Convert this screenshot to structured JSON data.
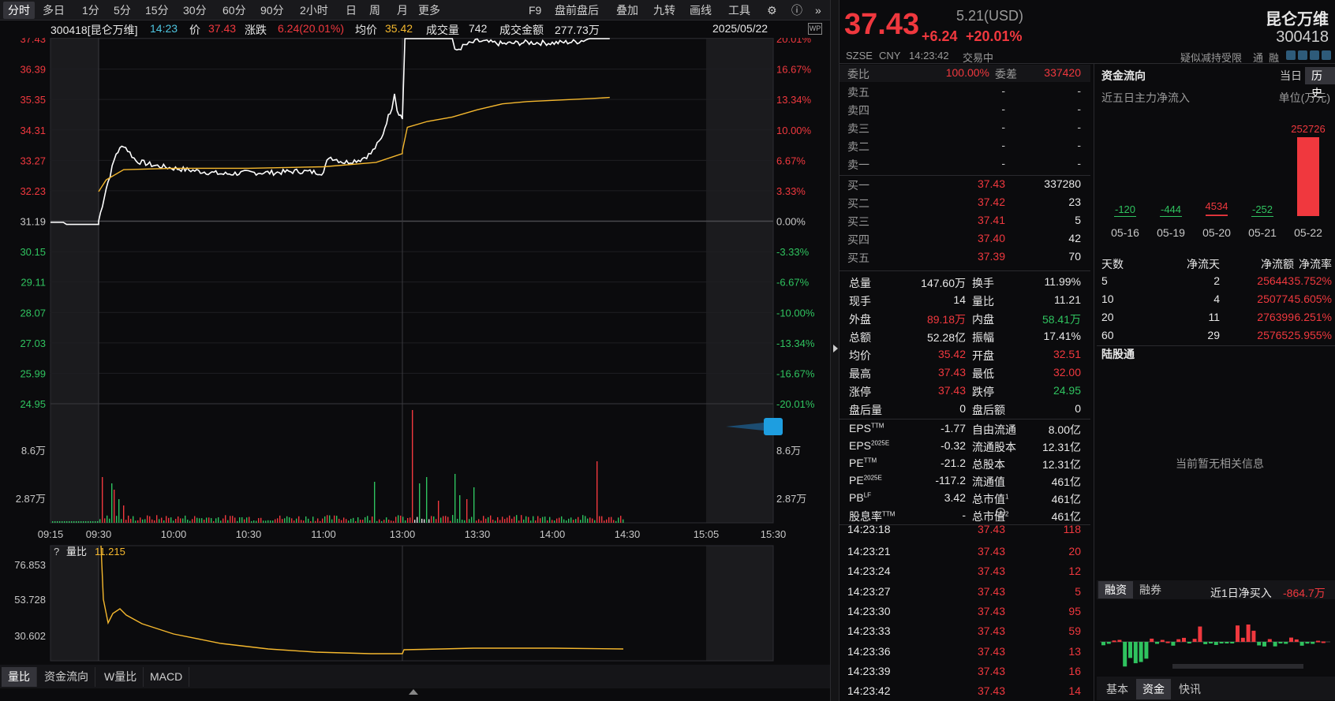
{
  "periods": [
    "分时",
    "多日",
    "1分",
    "5分",
    "15分",
    "30分",
    "60分",
    "90分",
    "2小时",
    "日",
    "周",
    "月",
    "更多"
  ],
  "right_tools": [
    "F9",
    "盘前盘后",
    "叠加",
    "九转",
    "画线",
    "工具"
  ],
  "info": {
    "code_name": "300418[昆仑万维]",
    "time": "14:23",
    "price_label": "价",
    "price": "37.43",
    "change_label": "涨跌",
    "change": "6.24(20.01%)",
    "avg_label": "均价",
    "avg": "35.42",
    "vol_label": "成交量",
    "vol": "742",
    "amount_label": "成交金额",
    "amount": "277.73万",
    "date": "2025/05/22"
  },
  "y_left": [
    "37.43",
    "36.39",
    "35.35",
    "34.31",
    "33.27",
    "32.23",
    "31.19",
    "30.15",
    "29.11",
    "28.07",
    "27.03",
    "25.99",
    "24.95"
  ],
  "y_right": [
    "20.01%",
    "16.67%",
    "13.34%",
    "10.00%",
    "6.67%",
    "3.33%",
    "0.00%",
    "-3.33%",
    "-6.67%",
    "-10.00%",
    "-13.34%",
    "-16.67%",
    "-20.01%"
  ],
  "vol_ticks": [
    "8.6万",
    "2.87万"
  ],
  "x_ticks": [
    "09:15",
    "09:30",
    "10:00",
    "10:30",
    "11:00",
    "13:00",
    "13:30",
    "14:00",
    "14:30",
    "15:05",
    "15:30"
  ],
  "indicator": {
    "q": "?",
    "name": "量比",
    "value": "11.215",
    "ticks": [
      "76.853",
      "53.728",
      "30.602"
    ]
  },
  "bottom_tabs": [
    "量比",
    "资金流向",
    "W量比",
    "MACD"
  ],
  "header": {
    "price": "37.43",
    "usd": "5.21(USD)",
    "chg": "+6.24",
    "pct": "+20.01%",
    "name": "昆仑万维",
    "code": "300418",
    "exch": "SZSE",
    "cur": "CNY",
    "time": "14:23:42",
    "status": "交易中",
    "tags": [
      "疑似减持受限",
      "通",
      "融"
    ]
  },
  "order": {
    "wb_label": "委比",
    "wb": "100.00%",
    "wc_label": "委差",
    "wc": "337420",
    "asks": [
      {
        "l": "卖五",
        "p": "-",
        "v": "-"
      },
      {
        "l": "卖四",
        "p": "-",
        "v": "-"
      },
      {
        "l": "卖三",
        "p": "-",
        "v": "-"
      },
      {
        "l": "卖二",
        "p": "-",
        "v": "-"
      },
      {
        "l": "卖一",
        "p": "-",
        "v": "-"
      }
    ],
    "bids": [
      {
        "l": "买一",
        "p": "37.43",
        "v": "337280"
      },
      {
        "l": "买二",
        "p": "37.42",
        "v": "23"
      },
      {
        "l": "买三",
        "p": "37.41",
        "v": "5"
      },
      {
        "l": "买四",
        "p": "37.40",
        "v": "42"
      },
      {
        "l": "买五",
        "p": "37.39",
        "v": "70"
      }
    ]
  },
  "stats": [
    [
      "总量",
      "147.60万",
      "white",
      "换手",
      "11.99%",
      "white"
    ],
    [
      "现手",
      "14",
      "white",
      "量比",
      "11.21",
      "white"
    ],
    [
      "外盘",
      "89.18万",
      "red",
      "内盘",
      "58.41万",
      "green"
    ],
    [
      "总额",
      "52.28亿",
      "white",
      "振幅",
      "17.41%",
      "white"
    ],
    [
      "均价",
      "35.42",
      "red",
      "开盘",
      "32.51",
      "red"
    ],
    [
      "最高",
      "37.43",
      "red",
      "最低",
      "32.00",
      "red"
    ],
    [
      "涨停",
      "37.43",
      "red",
      "跌停",
      "24.95",
      "green"
    ],
    [
      "盘后量",
      "0",
      "white",
      "盘后额",
      "0",
      "white"
    ]
  ],
  "fund": [
    [
      "EPS",
      "TTM",
      "-1.77",
      "自由流通",
      "",
      "8.00亿"
    ],
    [
      "EPS",
      "2025E",
      "-0.32",
      "流通股本",
      "",
      "12.31亿"
    ],
    [
      "PE",
      "TTM",
      "-21.2",
      "总股本",
      "",
      "12.31亿"
    ],
    [
      "PE",
      "2025E",
      "-117.2",
      "流通值",
      "",
      "461亿"
    ],
    [
      "PB",
      "LF",
      "3.42",
      "总市值",
      "1",
      "461亿"
    ],
    [
      "股息率",
      "TTM",
      "-",
      "总市值",
      "2",
      "461亿"
    ]
  ],
  "ticks": [
    [
      "14:23:18",
      "37.43",
      "118"
    ],
    [
      "14:23:21",
      "37.43",
      "20"
    ],
    [
      "14:23:24",
      "37.43",
      "12"
    ],
    [
      "14:23:27",
      "37.43",
      "5"
    ],
    [
      "14:23:30",
      "37.43",
      "95"
    ],
    [
      "14:23:33",
      "37.43",
      "59"
    ],
    [
      "14:23:36",
      "37.43",
      "13"
    ],
    [
      "14:23:39",
      "37.43",
      "16"
    ],
    [
      "14:23:42",
      "37.43",
      "14"
    ]
  ],
  "flow": {
    "title": "资金流向",
    "tabs": [
      "当日",
      "历史"
    ],
    "sub": "近五日主力净流入",
    "unit": "单位(万元)",
    "chart_data": {
      "type": "bar",
      "categories": [
        "05-16",
        "05-19",
        "05-20",
        "05-21",
        "05-22"
      ],
      "values": [
        -120,
        -444,
        4534,
        -252,
        252726
      ]
    },
    "table_head": [
      "天数",
      "净流天",
      "净流额",
      "净流率"
    ],
    "table": [
      [
        "5",
        "2",
        "256443",
        "5.752%"
      ],
      [
        "10",
        "4",
        "250774",
        "5.605%"
      ],
      [
        "20",
        "11",
        "276399",
        "6.251%"
      ],
      [
        "60",
        "29",
        "257652",
        "5.955%"
      ]
    ]
  },
  "lgt": {
    "title": "陆股通",
    "empty": "当前暂无相关信息"
  },
  "margin": {
    "tabs": [
      "融资",
      "融券"
    ],
    "label": "近1日净买入",
    "value": "-864.7万"
  },
  "rtabs": [
    "基本",
    "资金",
    "快讯"
  ]
}
